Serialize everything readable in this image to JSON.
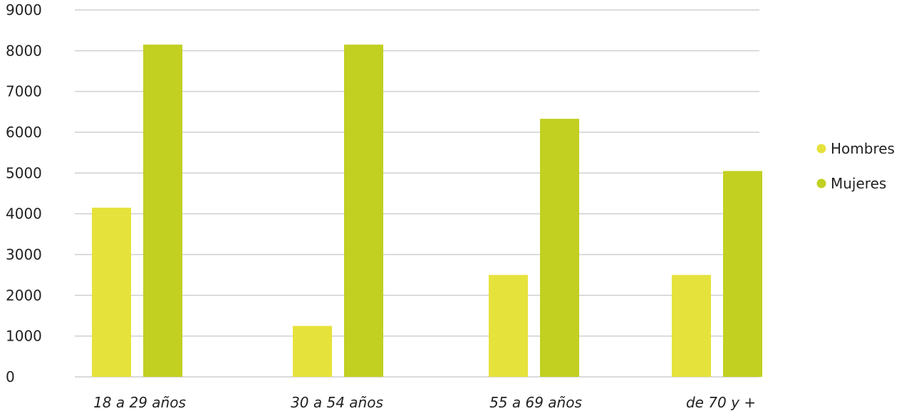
{
  "chart_data": {
    "type": "bar",
    "title": "",
    "xlabel": "",
    "ylabel": "",
    "ylim": [
      0,
      9000
    ],
    "yticks": [
      0,
      1000,
      2000,
      3000,
      4000,
      5000,
      6000,
      7000,
      8000,
      9000
    ],
    "grid": true,
    "legend_position": "right",
    "categories": [
      "18 a 29 años",
      "30 a 54 años",
      "55 a 69 años",
      "de 70 y +"
    ],
    "series": [
      {
        "name": "Hombres",
        "color": "#e6e23c",
        "values": [
          4150,
          1250,
          2500,
          2500
        ]
      },
      {
        "name": "Mujeres",
        "color": "#c1d021",
        "values": [
          8150,
          8150,
          6330,
          5050
        ]
      }
    ]
  }
}
